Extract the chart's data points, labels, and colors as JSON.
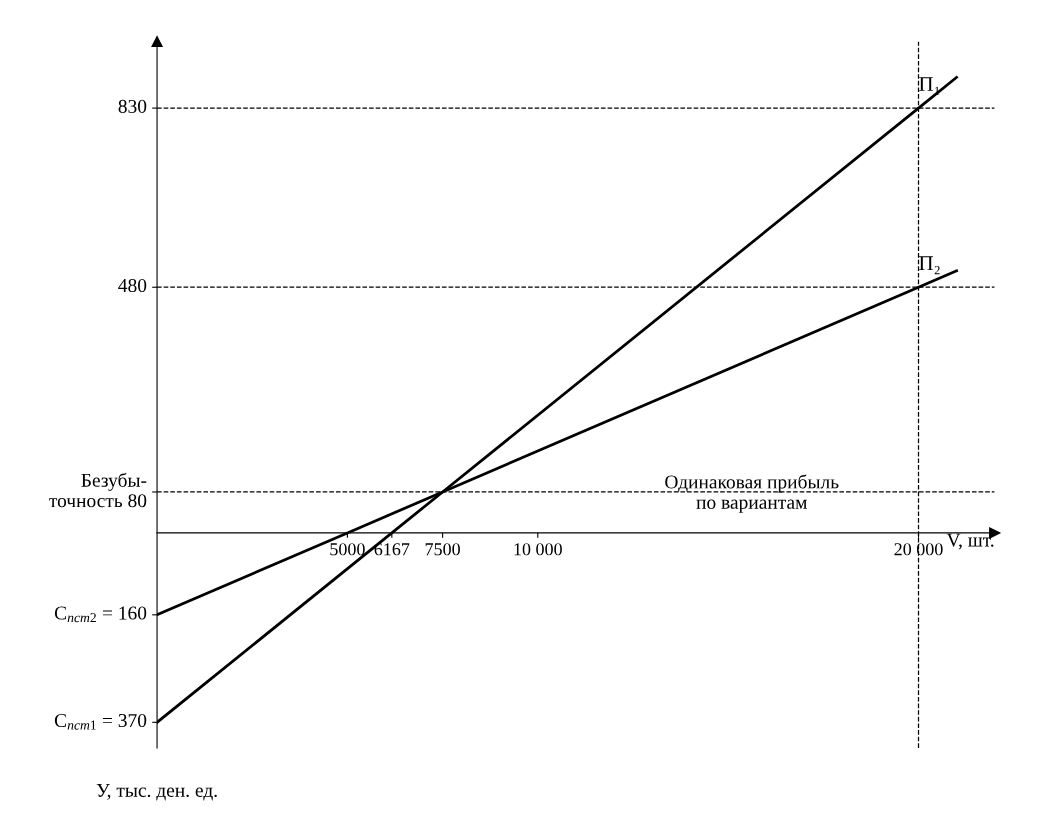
{
  "chart_data": {
    "type": "line",
    "xlabel": "V, шт.",
    "ylabel": "У, тыс. ден. ед.",
    "series": [
      {
        "name": "П₁",
        "color": "#000000",
        "x": [
          0,
          6167,
          7500,
          20000,
          21000
        ],
        "values": [
          -370,
          0,
          80,
          830,
          890
        ]
      },
      {
        "name": "П₂",
        "color": "#000000",
        "x": [
          0,
          5000,
          7500,
          20000,
          21000
        ],
        "values": [
          -160,
          0,
          80,
          480,
          512
        ]
      }
    ],
    "xlim": [
      0,
      22000
    ],
    "ylim": [
      -420,
      960
    ],
    "xticks": [
      5000,
      6167,
      7500,
      {
        "value": 10000,
        "label": "10 000"
      },
      {
        "value": 20000,
        "label": "20 000"
      }
    ],
    "yticks": [
      {
        "value": -370,
        "label": "C$_{пст1}$ = 370"
      },
      {
        "value": -160,
        "label": "C$_{пст2}$ = 160"
      },
      {
        "value": 80,
        "label": "Безубы-\nточность 80"
      },
      480,
      830
    ],
    "ref_lines": [
      {
        "axis": "y",
        "value": 830,
        "color": "#000000",
        "line_style": "dashed"
      },
      {
        "axis": "y",
        "value": 480,
        "color": "#000000",
        "line_style": "dashed"
      },
      {
        "axis": "y",
        "value": 80,
        "color": "#000000",
        "line_style": "dashed"
      },
      {
        "axis": "x",
        "value": 20000,
        "color": "#000000",
        "line_style": "dashed"
      }
    ],
    "annotations": [
      "Одинаковая прибыль\nпо вариантам"
    ],
    "marker": "none",
    "line_style": "solid",
    "grid": false,
    "legend": false
  }
}
